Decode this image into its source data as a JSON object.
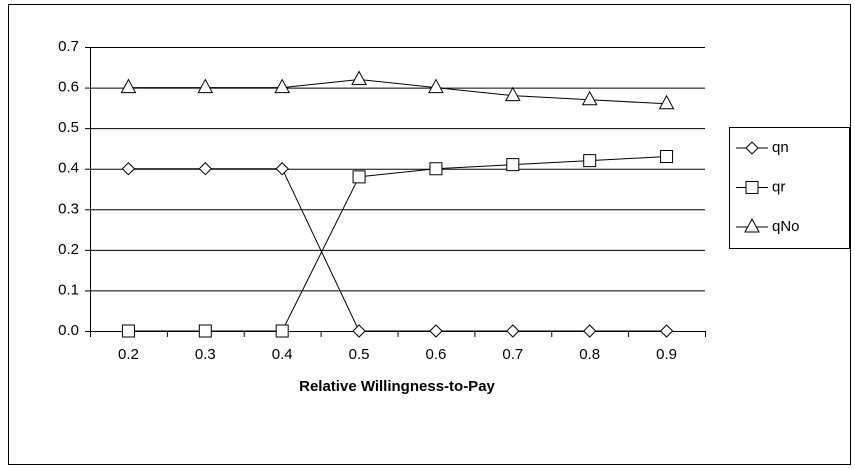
{
  "chart_data": {
    "type": "line",
    "x_label": "Relative Willingness-to-Pay",
    "categories": [
      "0.2",
      "0.3",
      "0.4",
      "0.5",
      "0.6",
      "0.7",
      "0.8",
      "0.9"
    ],
    "series": [
      {
        "name": "qn",
        "color": "#000000",
        "marker": "diamond",
        "values": [
          0.4,
          0.4,
          0.4,
          0,
          0,
          0,
          0,
          0
        ]
      },
      {
        "name": "qr",
        "color": "#000000",
        "marker": "square",
        "values": [
          0,
          0,
          0,
          0.38,
          0.4,
          0.41,
          0.42,
          0.43
        ]
      },
      {
        "name": "qNo",
        "color": "#000000",
        "marker": "triangle",
        "values": [
          0.6,
          0.6,
          0.6,
          0.62,
          0.6,
          0.58,
          0.57,
          0.56
        ]
      }
    ],
    "ylim": [
      0,
      0.7
    ],
    "yticks": [
      {
        "value": 0,
        "label": "0.0"
      },
      0.1,
      0.2,
      0.3,
      0.4,
      0.5,
      0.6,
      0.7
    ],
    "grid": true,
    "legend": "right"
  }
}
